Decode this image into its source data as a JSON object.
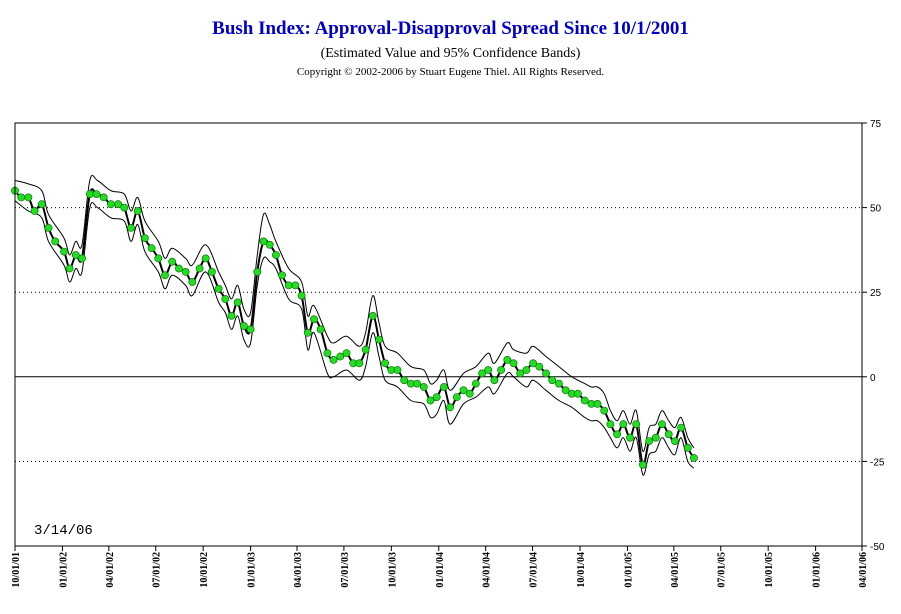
{
  "chart_data": {
    "type": "line",
    "title": "Bush Index:  Approval-Disapproval Spread Since 10/1/2001",
    "subtitle": "(Estimated Value and 95% Confidence Bands)",
    "copyright": "Copyright © 2002-2006 by Stuart Eugene Thiel.  All Rights Reserved.",
    "annotation": "3/14/06",
    "xlabel": "",
    "ylabel": "",
    "x_range": [
      "10/01/01",
      "04/01/06"
    ],
    "x_total_days": 1643,
    "ylim": [
      -50,
      75
    ],
    "y_ticks": [
      "75",
      "50",
      "25",
      "0",
      "-25",
      "-50"
    ],
    "y_axis_side": "right",
    "x_ticks": [
      {
        "label": "10/01/01",
        "day": 0
      },
      {
        "label": "01/01/02",
        "day": 92
      },
      {
        "label": "04/01/02",
        "day": 182
      },
      {
        "label": "07/01/02",
        "day": 273
      },
      {
        "label": "10/01/02",
        "day": 365
      },
      {
        "label": "01/01/03",
        "day": 457
      },
      {
        "label": "04/01/03",
        "day": 547
      },
      {
        "label": "07/01/03",
        "day": 638
      },
      {
        "label": "10/01/03",
        "day": 730
      },
      {
        "label": "01/01/04",
        "day": 822
      },
      {
        "label": "04/01/04",
        "day": 913
      },
      {
        "label": "07/01/04",
        "day": 1004
      },
      {
        "label": "10/01/04",
        "day": 1096
      },
      {
        "label": "01/01/05",
        "day": 1188
      },
      {
        "label": "04/01/05",
        "day": 1278
      },
      {
        "label": "07/01/05",
        "day": 1369
      },
      {
        "label": "10/01/05",
        "day": 1461
      },
      {
        "label": "01/01/06",
        "day": 1553
      },
      {
        "label": "04/01/06",
        "day": 1643
      }
    ],
    "grid": "dotted horizontal at 50, 25, -25; solid line at 0",
    "colors": {
      "title": "#0000cc",
      "marker": "#22dd22",
      "marker_stroke": "#006600",
      "line": "#000000"
    },
    "series": [
      {
        "role": "estimate",
        "points": [
          [
            0,
            55
          ],
          [
            12,
            53
          ],
          [
            26,
            53
          ],
          [
            38,
            49
          ],
          [
            52,
            51
          ],
          [
            65,
            44
          ],
          [
            78,
            40
          ],
          [
            95,
            37
          ],
          [
            106,
            32
          ],
          [
            118,
            36
          ],
          [
            130,
            35
          ],
          [
            145,
            54
          ],
          [
            158,
            54
          ],
          [
            172,
            53
          ],
          [
            186,
            51
          ],
          [
            200,
            51
          ],
          [
            212,
            50
          ],
          [
            225,
            44
          ],
          [
            238,
            49
          ],
          [
            252,
            41
          ],
          [
            265,
            38
          ],
          [
            278,
            35
          ],
          [
            291,
            30
          ],
          [
            305,
            34
          ],
          [
            318,
            32
          ],
          [
            331,
            31
          ],
          [
            344,
            28
          ],
          [
            358,
            32
          ],
          [
            370,
            35
          ],
          [
            382,
            31
          ],
          [
            395,
            26
          ],
          [
            408,
            23
          ],
          [
            420,
            18
          ],
          [
            432,
            22
          ],
          [
            444,
            15
          ],
          [
            457,
            14
          ],
          [
            470,
            31
          ],
          [
            482,
            40
          ],
          [
            494,
            39
          ],
          [
            506,
            36
          ],
          [
            518,
            30
          ],
          [
            531,
            27
          ],
          [
            544,
            27
          ],
          [
            556,
            24
          ],
          [
            568,
            13
          ],
          [
            580,
            17
          ],
          [
            593,
            14
          ],
          [
            606,
            7
          ],
          [
            618,
            5
          ],
          [
            631,
            6
          ],
          [
            643,
            7
          ],
          [
            656,
            4
          ],
          [
            668,
            4
          ],
          [
            680,
            8
          ],
          [
            694,
            18
          ],
          [
            706,
            11
          ],
          [
            718,
            4
          ],
          [
            730,
            2
          ],
          [
            742,
            2
          ],
          [
            755,
            -1
          ],
          [
            768,
            -2
          ],
          [
            780,
            -2
          ],
          [
            793,
            -3
          ],
          [
            806,
            -7
          ],
          [
            818,
            -6
          ],
          [
            832,
            -3
          ],
          [
            844,
            -9
          ],
          [
            857,
            -6
          ],
          [
            870,
            -4
          ],
          [
            882,
            -5
          ],
          [
            894,
            -2
          ],
          [
            906,
            1
          ],
          [
            918,
            2
          ],
          [
            930,
            -1
          ],
          [
            943,
            2
          ],
          [
            955,
            5
          ],
          [
            967,
            4
          ],
          [
            980,
            1
          ],
          [
            992,
            2
          ],
          [
            1005,
            4
          ],
          [
            1017,
            3
          ],
          [
            1030,
            1
          ],
          [
            1042,
            -1
          ],
          [
            1055,
            -2
          ],
          [
            1068,
            -4
          ],
          [
            1080,
            -5
          ],
          [
            1092,
            -5
          ],
          [
            1105,
            -7
          ],
          [
            1118,
            -8
          ],
          [
            1130,
            -8
          ],
          [
            1143,
            -10
          ],
          [
            1155,
            -14
          ],
          [
            1168,
            -17
          ],
          [
            1180,
            -14
          ],
          [
            1193,
            -18
          ],
          [
            1205,
            -14
          ],
          [
            1218,
            -26
          ],
          [
            1230,
            -19
          ],
          [
            1243,
            -18
          ],
          [
            1255,
            -14
          ],
          [
            1268,
            -17
          ],
          [
            1280,
            -19
          ],
          [
            1292,
            -15
          ],
          [
            1305,
            -21
          ],
          [
            1317,
            -24
          ]
        ]
      },
      {
        "role": "upper_95",
        "points": [
          [
            0,
            58
          ],
          [
            26,
            57
          ],
          [
            52,
            55
          ],
          [
            65,
            48
          ],
          [
            95,
            41
          ],
          [
            106,
            36
          ],
          [
            118,
            40
          ],
          [
            130,
            39
          ],
          [
            145,
            58
          ],
          [
            160,
            58
          ],
          [
            186,
            55
          ],
          [
            212,
            54
          ],
          [
            225,
            49
          ],
          [
            238,
            53
          ],
          [
            252,
            46
          ],
          [
            278,
            40
          ],
          [
            291,
            35
          ],
          [
            305,
            38
          ],
          [
            331,
            35
          ],
          [
            344,
            33
          ],
          [
            370,
            39
          ],
          [
            395,
            31
          ],
          [
            408,
            27
          ],
          [
            420,
            23
          ],
          [
            432,
            27
          ],
          [
            444,
            20
          ],
          [
            457,
            19
          ],
          [
            470,
            36
          ],
          [
            482,
            48
          ],
          [
            494,
            45
          ],
          [
            506,
            40
          ],
          [
            531,
            32
          ],
          [
            556,
            28
          ],
          [
            568,
            18
          ],
          [
            580,
            21
          ],
          [
            606,
            12
          ],
          [
            618,
            10
          ],
          [
            643,
            12
          ],
          [
            668,
            9
          ],
          [
            680,
            13
          ],
          [
            694,
            24
          ],
          [
            706,
            16
          ],
          [
            718,
            9
          ],
          [
            742,
            7
          ],
          [
            768,
            3
          ],
          [
            793,
            2
          ],
          [
            806,
            -2
          ],
          [
            818,
            -1
          ],
          [
            832,
            2
          ],
          [
            844,
            -4
          ],
          [
            870,
            1
          ],
          [
            894,
            3
          ],
          [
            918,
            7
          ],
          [
            930,
            4
          ],
          [
            955,
            10
          ],
          [
            967,
            8
          ],
          [
            992,
            7
          ],
          [
            1005,
            9
          ],
          [
            1030,
            6
          ],
          [
            1055,
            3
          ],
          [
            1080,
            0
          ],
          [
            1105,
            -2
          ],
          [
            1118,
            -3
          ],
          [
            1130,
            -3
          ],
          [
            1143,
            -5
          ],
          [
            1155,
            -10
          ],
          [
            1168,
            -13
          ],
          [
            1180,
            -10
          ],
          [
            1193,
            -14
          ],
          [
            1205,
            -10
          ],
          [
            1218,
            -22
          ],
          [
            1230,
            -15
          ],
          [
            1243,
            -14
          ],
          [
            1255,
            -10
          ],
          [
            1268,
            -13
          ],
          [
            1280,
            -15
          ],
          [
            1292,
            -12
          ],
          [
            1305,
            -18
          ],
          [
            1317,
            -21
          ]
        ]
      },
      {
        "role": "lower_95",
        "points": [
          [
            0,
            52
          ],
          [
            26,
            49
          ],
          [
            52,
            47
          ],
          [
            65,
            40
          ],
          [
            95,
            33
          ],
          [
            106,
            28
          ],
          [
            118,
            32
          ],
          [
            130,
            31
          ],
          [
            145,
            50
          ],
          [
            160,
            50
          ],
          [
            186,
            47
          ],
          [
            212,
            46
          ],
          [
            225,
            40
          ],
          [
            238,
            45
          ],
          [
            252,
            37
          ],
          [
            278,
            31
          ],
          [
            291,
            26
          ],
          [
            305,
            30
          ],
          [
            331,
            27
          ],
          [
            344,
            24
          ],
          [
            370,
            31
          ],
          [
            395,
            22
          ],
          [
            408,
            19
          ],
          [
            420,
            14
          ],
          [
            432,
            18
          ],
          [
            444,
            11
          ],
          [
            457,
            10
          ],
          [
            470,
            27
          ],
          [
            482,
            35
          ],
          [
            494,
            34
          ],
          [
            506,
            32
          ],
          [
            531,
            23
          ],
          [
            556,
            20
          ],
          [
            568,
            8
          ],
          [
            580,
            13
          ],
          [
            606,
            1
          ],
          [
            618,
            0
          ],
          [
            643,
            2
          ],
          [
            668,
            -1
          ],
          [
            680,
            3
          ],
          [
            694,
            13
          ],
          [
            706,
            6
          ],
          [
            718,
            -1
          ],
          [
            742,
            -3
          ],
          [
            768,
            -7
          ],
          [
            793,
            -8
          ],
          [
            806,
            -12
          ],
          [
            818,
            -11
          ],
          [
            832,
            -7
          ],
          [
            844,
            -14
          ],
          [
            870,
            -8
          ],
          [
            894,
            -6
          ],
          [
            918,
            -3
          ],
          [
            930,
            -5
          ],
          [
            955,
            1
          ],
          [
            967,
            0
          ],
          [
            992,
            -3
          ],
          [
            1005,
            -1
          ],
          [
            1030,
            -4
          ],
          [
            1055,
            -7
          ],
          [
            1080,
            -9
          ],
          [
            1105,
            -12
          ],
          [
            1118,
            -13
          ],
          [
            1130,
            -13
          ],
          [
            1143,
            -15
          ],
          [
            1155,
            -18
          ],
          [
            1168,
            -21
          ],
          [
            1180,
            -18
          ],
          [
            1193,
            -22
          ],
          [
            1205,
            -18
          ],
          [
            1218,
            -29
          ],
          [
            1230,
            -23
          ],
          [
            1243,
            -22
          ],
          [
            1255,
            -18
          ],
          [
            1268,
            -21
          ],
          [
            1280,
            -23
          ],
          [
            1292,
            -18
          ],
          [
            1305,
            -25
          ],
          [
            1317,
            -27
          ]
        ]
      }
    ]
  }
}
